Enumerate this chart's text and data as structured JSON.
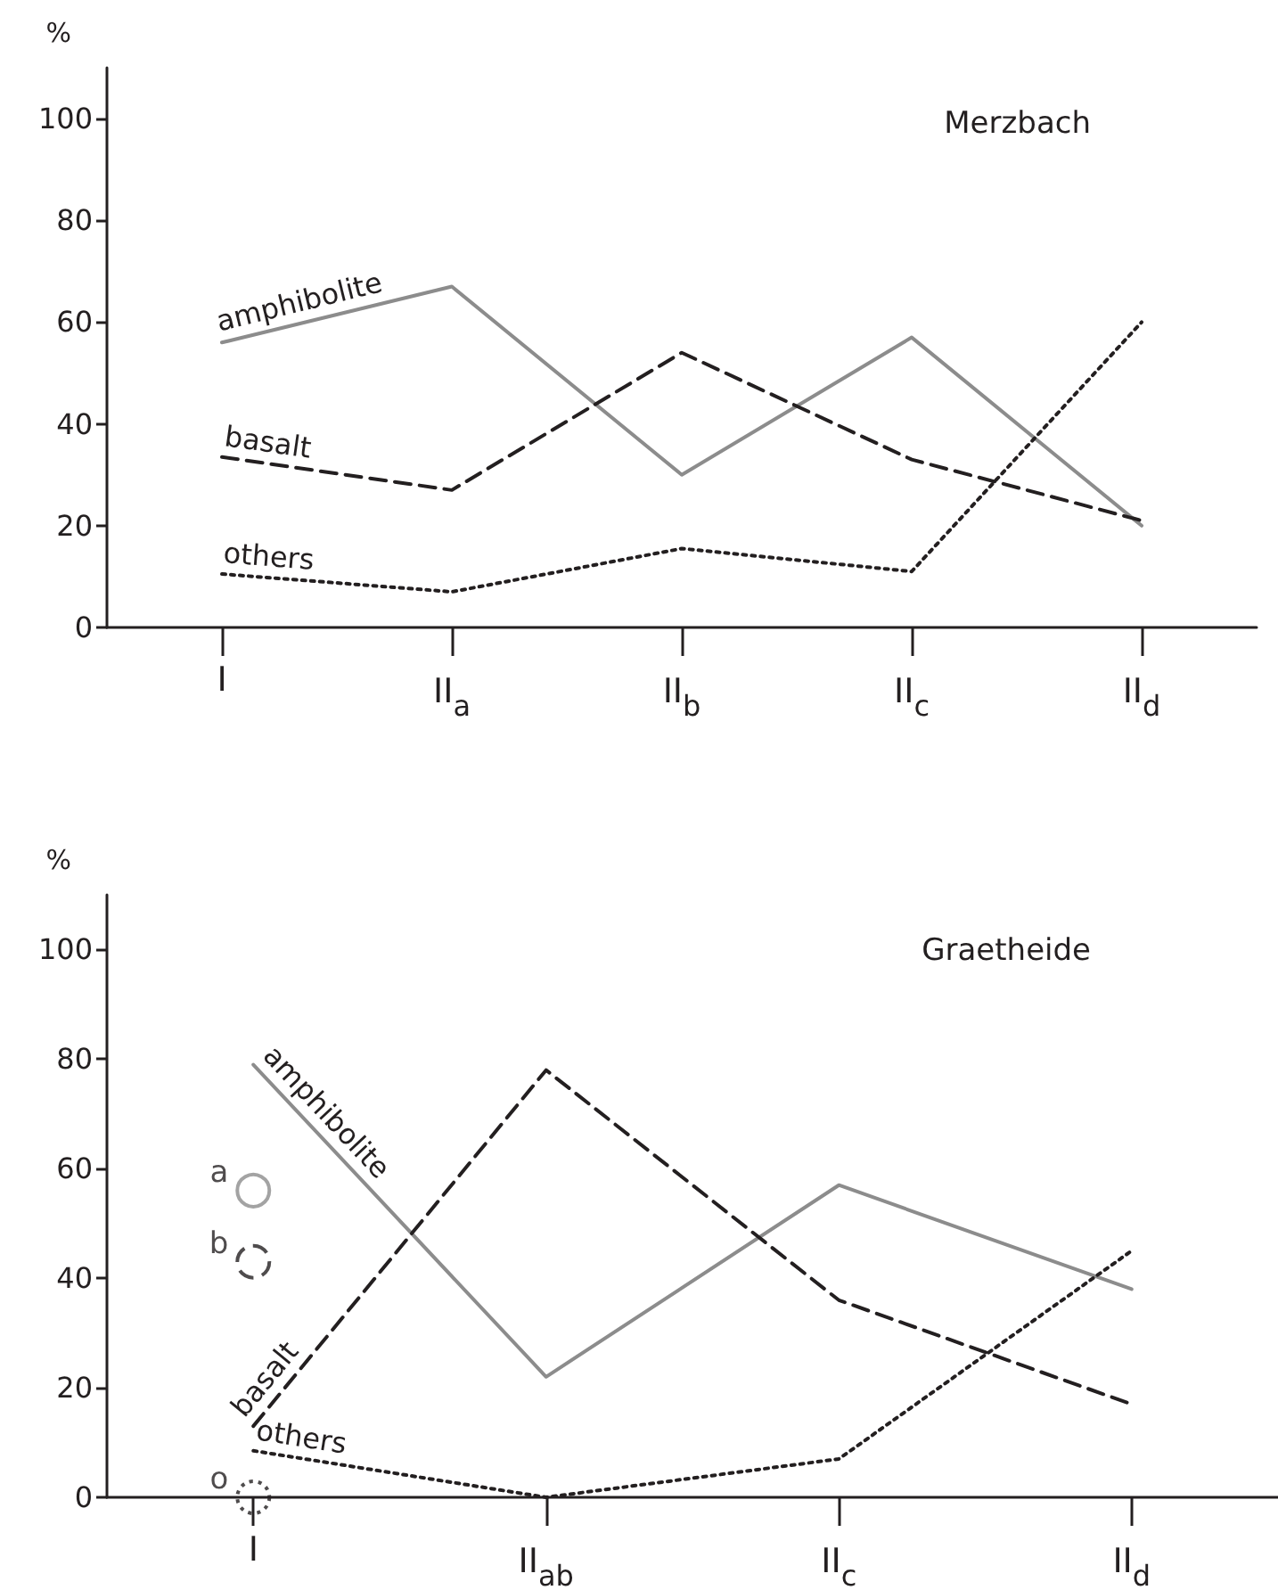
{
  "chart_data": [
    {
      "type": "line",
      "title": "Merzbach",
      "ylabel": "%",
      "categories": [
        "I",
        "II$_{a}$",
        "II$_{b}$",
        "II$_{c}$",
        "II$_{d}$"
      ],
      "ylim": [
        0,
        110
      ],
      "yticks": [
        0,
        20,
        40,
        60,
        80,
        100
      ],
      "grid": false,
      "legend": false,
      "marker": "none",
      "series": [
        {
          "name": "amphibolite",
          "color": "#8c8c8c",
          "line_style": "solid",
          "values": [
            56,
            67,
            30,
            57,
            20
          ]
        },
        {
          "name": "basalt",
          "color": "#231f20",
          "line_style": "dashed",
          "values": [
            33.5,
            27,
            54,
            33,
            21
          ]
        },
        {
          "name": "others",
          "color": "#231f20",
          "line_style": "dotted",
          "values": [
            10.5,
            7,
            15.5,
            11,
            60
          ]
        }
      ]
    },
    {
      "type": "line",
      "title": "Graetheide",
      "ylabel": "%",
      "categories": [
        "I",
        "II$_{ab}$",
        "II$_{c}$",
        "II$_{d}$"
      ],
      "ylim": [
        0,
        110
      ],
      "yticks": [
        0,
        20,
        40,
        60,
        80,
        100
      ],
      "grid": false,
      "marker": "none",
      "series": [
        {
          "name": "amphibolite",
          "color": "#8c8c8c",
          "line_style": "solid",
          "values": [
            79,
            22,
            57,
            38
          ]
        },
        {
          "name": "basalt",
          "color": "#231f20",
          "line_style": "dashed",
          "values": [
            13,
            78,
            36,
            17
          ]
        },
        {
          "name": "others",
          "color": "#231f20",
          "line_style": "dotted",
          "values": [
            8.5,
            0,
            7,
            45
          ]
        },
        {
          "name": "a",
          "type": "scatter",
          "marker": "circle",
          "color": "#8c8c8c",
          "line_style": "solid",
          "x": [
            "I"
          ],
          "values": [
            56
          ]
        },
        {
          "name": "b",
          "type": "scatter",
          "marker": "circle",
          "color": "#231f20",
          "line_style": "dashed",
          "x": [
            "I"
          ],
          "values": [
            43
          ]
        },
        {
          "name": "o",
          "type": "scatter",
          "marker": "circle",
          "color": "#231f20",
          "line_style": "dotted",
          "x": [
            "I"
          ],
          "values": [
            0
          ]
        }
      ]
    }
  ]
}
